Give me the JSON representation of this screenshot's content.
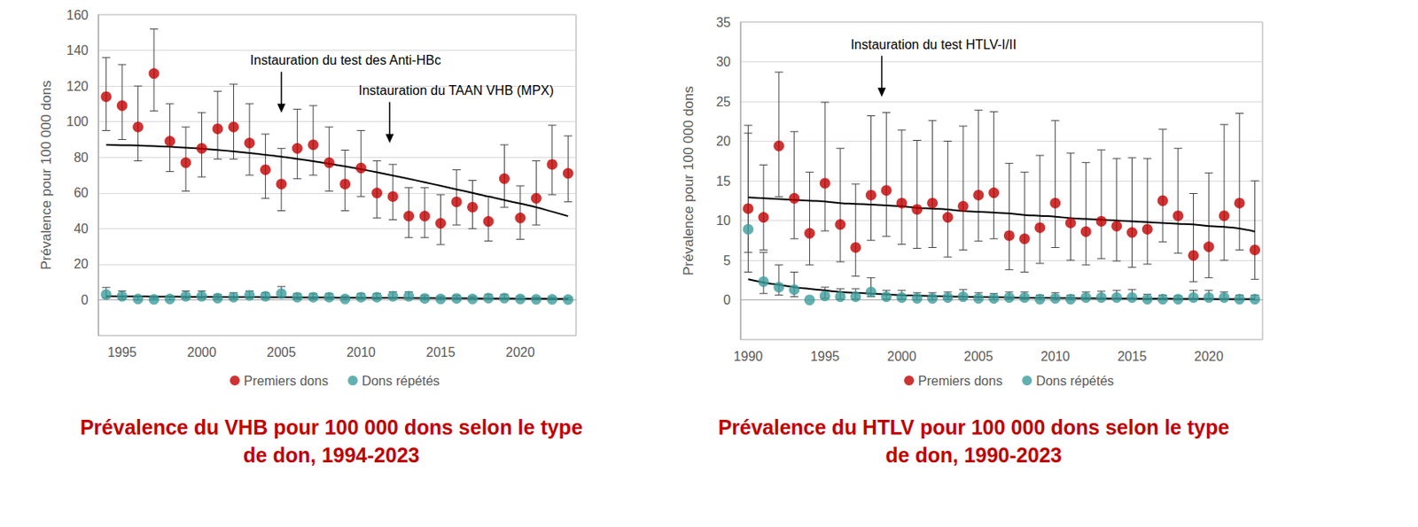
{
  "chart_data": [
    {
      "type": "scatter",
      "title": "Prévalence du VHB pour 100 000 dons selon le type\nde don, 1994-2023",
      "y_label": "Prévalence pour 100 000 dons",
      "x": [
        1994,
        1995,
        1996,
        1997,
        1998,
        1999,
        2000,
        2001,
        2002,
        2003,
        2004,
        2005,
        2006,
        2007,
        2008,
        2009,
        2010,
        2011,
        2012,
        2013,
        2014,
        2015,
        2016,
        2017,
        2018,
        2019,
        2020,
        2021,
        2022,
        2023
      ],
      "xlim": [
        1993.5,
        2023.5
      ],
      "xticks": [
        1995,
        2000,
        2005,
        2010,
        2015,
        2020
      ],
      "ylim": [
        -20,
        160
      ],
      "yticks": [
        0,
        20,
        40,
        60,
        80,
        100,
        120,
        140,
        160
      ],
      "grid": true,
      "legend": "bottom",
      "series": [
        {
          "name": "Premiers dons",
          "color": "#C00000",
          "marker": "circle",
          "values": [
            114,
            109,
            97,
            127,
            89,
            77,
            85,
            96,
            97,
            88,
            73,
            65,
            85,
            87,
            77,
            65,
            74,
            60,
            58,
            47,
            47,
            43,
            55,
            52,
            44,
            68,
            46,
            57,
            76,
            71
          ],
          "error_low": [
            95,
            90,
            78,
            106,
            72,
            61,
            69,
            79,
            79,
            70,
            57,
            50,
            68,
            70,
            61,
            50,
            58,
            46,
            45,
            35,
            35,
            31,
            42,
            40,
            33,
            52,
            34,
            42,
            59,
            55
          ],
          "error_high": [
            136,
            132,
            120,
            152,
            110,
            97,
            105,
            117,
            121,
            110,
            93,
            85,
            107,
            109,
            97,
            84,
            95,
            78,
            76,
            63,
            63,
            59,
            73,
            67,
            58,
            87,
            64,
            78,
            98,
            92
          ],
          "trend": [
            87,
            86.8,
            86.6,
            86.3,
            85.9,
            85.4,
            84.8,
            84.1,
            83.3,
            82.4,
            81.4,
            80.3,
            79.1,
            77.8,
            76.4,
            74.9,
            73.3,
            71.6,
            69.8,
            67.9,
            66,
            64,
            62,
            60,
            58,
            56,
            54,
            52,
            49.5,
            47
          ]
        },
        {
          "name": "Dons répétés",
          "color": "#3C9C9C",
          "marker": "circle",
          "values": [
            3,
            2,
            0.5,
            0.3,
            0.5,
            2,
            2,
            1,
            1.5,
            2.5,
            2,
            3.5,
            1.5,
            1.5,
            1.5,
            0.5,
            1.5,
            1.5,
            2,
            2,
            0.8,
            0.5,
            0.8,
            0.5,
            1,
            1,
            0.5,
            0.3,
            0.3,
            0.2
          ],
          "error_low": [
            1,
            0.5,
            0,
            0,
            0,
            0.8,
            0.8,
            0.3,
            0.5,
            1,
            0.8,
            1.5,
            0.5,
            0.5,
            0.5,
            0,
            0.5,
            0.5,
            0.8,
            0.8,
            0.2,
            0.1,
            0.2,
            0.1,
            0.3,
            0.3,
            0.1,
            0,
            0,
            0
          ],
          "error_high": [
            7,
            5,
            2,
            1,
            2,
            5,
            5,
            3,
            4,
            5,
            4,
            7.5,
            3.5,
            3.5,
            3.5,
            2,
            3.5,
            3.5,
            4.5,
            4.5,
            2.5,
            2,
            2.5,
            2,
            3,
            3,
            2,
            1.5,
            1.5,
            1.2
          ],
          "trend": [
            2,
            1.95,
            1.9,
            1.85,
            1.8,
            1.75,
            1.7,
            1.65,
            1.6,
            1.55,
            1.5,
            1.45,
            1.4,
            1.35,
            1.3,
            1.25,
            1.2,
            1.15,
            1.1,
            1.05,
            1,
            0.95,
            0.9,
            0.85,
            0.8,
            0.75,
            0.7,
            0.65,
            0.6,
            0.55
          ]
        }
      ],
      "annotations": [
        {
          "text": "Instauration du test des Anti-HBc",
          "x": 2005,
          "y": 105
        },
        {
          "text": "Instauration du TAAN VHB (MPX)",
          "x": 2011.8,
          "y": 88
        }
      ]
    },
    {
      "type": "scatter",
      "title": "Prévalence du HTLV pour 100 000 dons selon le type\nde don, 1990-2023",
      "y_label": "Prévalence pour 100 000 dons",
      "x": [
        1990,
        1991,
        1992,
        1993,
        1994,
        1995,
        1996,
        1997,
        1998,
        1999,
        2000,
        2001,
        2002,
        2003,
        2004,
        2005,
        2006,
        2007,
        2008,
        2009,
        2010,
        2011,
        2012,
        2013,
        2014,
        2015,
        2016,
        2017,
        2018,
        2019,
        2020,
        2021,
        2022,
        2023
      ],
      "xlim": [
        1989.5,
        2023.5
      ],
      "xticks": [
        1990,
        1995,
        2000,
        2005,
        2010,
        2015,
        2020
      ],
      "ylim": [
        -5,
        35
      ],
      "yticks": [
        0,
        5,
        10,
        15,
        20,
        25,
        30,
        35
      ],
      "grid": true,
      "legend": "bottom",
      "series": [
        {
          "name": "Premiers dons",
          "color": "#C00000",
          "marker": "circle",
          "values": [
            11.5,
            10.4,
            19.4,
            12.8,
            8.4,
            14.7,
            9.5,
            6.6,
            13.2,
            13.8,
            12.2,
            11.4,
            12.2,
            10.4,
            11.8,
            13.2,
            13.5,
            8.1,
            7.7,
            9.1,
            12.2,
            9.7,
            8.6,
            9.9,
            9.3,
            8.5,
            8.9,
            12.5,
            10.6,
            5.6,
            6.7,
            10.6,
            12.2,
            6.3
          ],
          "error_low": [
            6,
            6.3,
            13,
            7.7,
            4.4,
            8.7,
            4.8,
            3,
            7.5,
            8,
            7,
            6.5,
            6.6,
            5.4,
            6.3,
            7.4,
            7.7,
            3.8,
            3.5,
            4.6,
            6.6,
            5,
            4.4,
            5.2,
            4.9,
            4.1,
            4.5,
            7.3,
            5.9,
            2.3,
            2.8,
            5,
            6.3,
            2.6
          ],
          "error_high": [
            22,
            17,
            28.7,
            21.2,
            16.1,
            24.9,
            19.1,
            14.6,
            23.2,
            23.6,
            21.4,
            20.1,
            22.6,
            20,
            21.9,
            23.9,
            23.7,
            17.2,
            16.1,
            18.2,
            22.6,
            18.5,
            17.3,
            18.9,
            17.8,
            17.9,
            17.8,
            21.5,
            19.1,
            13.4,
            16,
            22.1,
            23.5,
            15
          ],
          "trend": [
            12.9,
            12.8,
            12.7,
            12.6,
            12.5,
            12.4,
            12.2,
            12.1,
            12,
            11.9,
            11.8,
            11.6,
            11.5,
            11.4,
            11.2,
            11.1,
            11,
            10.9,
            10.7,
            10.6,
            10.5,
            10.3,
            10.2,
            10.1,
            10,
            9.9,
            9.8,
            9.7,
            9.6,
            9.5,
            9.3,
            9.2,
            9,
            8.6
          ]
        },
        {
          "name": "Dons répétés",
          "color": "#3C9C9C",
          "marker": "circle",
          "values": [
            8.9,
            2.3,
            1.6,
            1.3,
            0,
            0.5,
            0.4,
            0.4,
            1,
            0.4,
            0.3,
            0.2,
            0.2,
            0.3,
            0.4,
            0.2,
            0.2,
            0.3,
            0.3,
            0.1,
            0.2,
            0.1,
            0.3,
            0.3,
            0.3,
            0.3,
            0.1,
            0.1,
            0.1,
            0.3,
            0.3,
            0.3,
            0.1,
            0.1
          ],
          "error_low": [
            3.5,
            0.8,
            0.6,
            0.4,
            0,
            0.2,
            0.1,
            0.1,
            0.4,
            0.1,
            0.1,
            0,
            0,
            0.1,
            0.1,
            0,
            0,
            0.1,
            0.1,
            0,
            0,
            0,
            0.1,
            0.1,
            0.1,
            0.1,
            0,
            0,
            0,
            0.1,
            0.1,
            0.1,
            0,
            0
          ],
          "error_high": [
            21,
            6,
            4.4,
            3.5,
            0,
            1.6,
            1.4,
            1.4,
            2.8,
            1.2,
            1.2,
            0.9,
            0.9,
            1,
            1.3,
            0.9,
            0.8,
            1,
            1,
            0.6,
            0.9,
            0.6,
            1,
            1.1,
            1.2,
            1.3,
            0.7,
            0.6,
            0.5,
            1.2,
            1.2,
            1,
            0.6,
            0.6
          ],
          "trend": [
            2.6,
            2.2,
            1.9,
            1.6,
            1.4,
            1.2,
            1,
            0.9,
            0.8,
            0.7,
            0.6,
            0.55,
            0.5,
            0.45,
            0.4,
            0.37,
            0.34,
            0.31,
            0.28,
            0.26,
            0.24,
            0.22,
            0.2,
            0.19,
            0.18,
            0.17,
            0.16,
            0.15,
            0.14,
            0.13,
            0.12,
            0.11,
            0.1,
            0.1
          ]
        }
      ],
      "annotations": [
        {
          "text": "Instauration du test HTLV-I/II",
          "x": 1998.7,
          "y": 25.6
        }
      ]
    }
  ]
}
